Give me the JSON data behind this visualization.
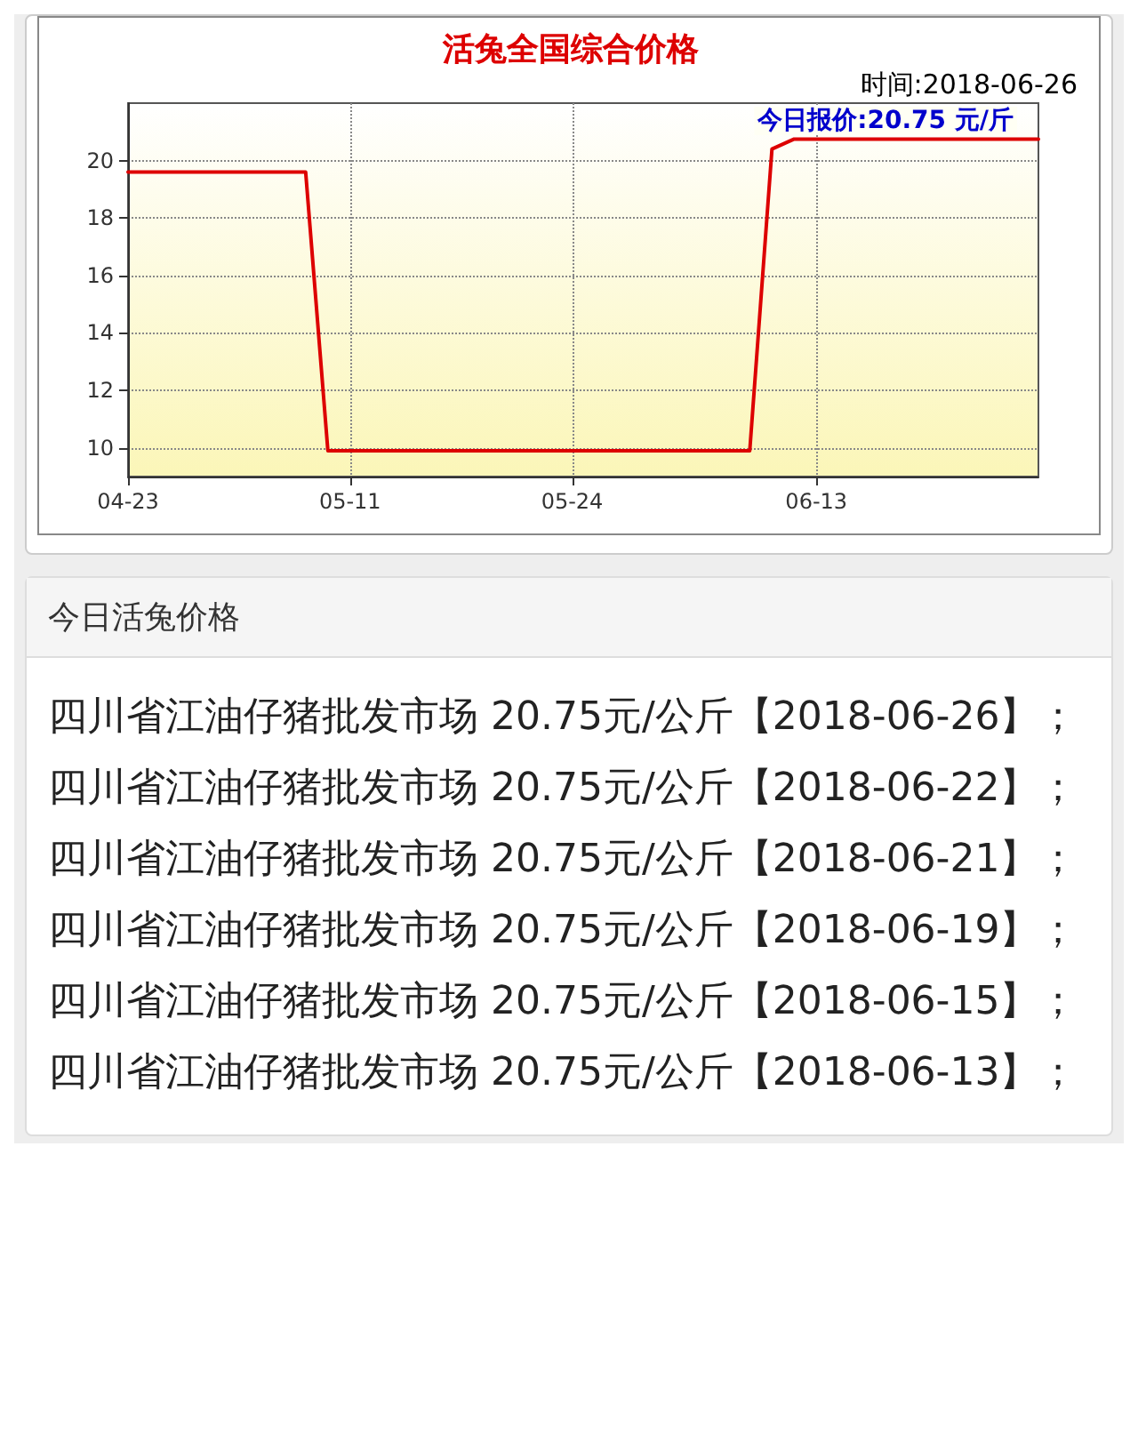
{
  "chart_data": {
    "type": "line",
    "title": "活兔全国综合价格",
    "categories": [
      "04-23",
      null,
      null,
      null,
      null,
      null,
      null,
      null,
      null,
      null,
      "05-11",
      null,
      null,
      null,
      null,
      null,
      null,
      null,
      null,
      null,
      "05-24",
      null,
      null,
      null,
      null,
      null,
      null,
      null,
      null,
      null,
      null,
      "06-13",
      null,
      null,
      null,
      null,
      null,
      null,
      null,
      null,
      null,
      null
    ],
    "series": [
      {
        "color": "#dd0000",
        "values": [
          19.6,
          19.6,
          19.6,
          19.6,
          19.6,
          19.6,
          19.6,
          19.6,
          19.6,
          9.9,
          9.9,
          9.9,
          9.9,
          9.9,
          9.9,
          9.9,
          9.9,
          9.9,
          9.9,
          9.9,
          9.9,
          9.9,
          9.9,
          9.9,
          9.9,
          9.9,
          9.9,
          9.9,
          9.9,
          20.4,
          20.75,
          20.75,
          20.75,
          20.75,
          20.75,
          20.75,
          20.75,
          20.75,
          20.75,
          20.75,
          20.75,
          20.75
        ]
      }
    ],
    "ylim": [
      9,
      22
    ],
    "yticks": [
      10,
      12,
      14,
      16,
      18,
      20
    ],
    "grid": true,
    "marker": "none",
    "line_style": "solid",
    "annotations": [
      "时间:2018-06-26",
      "今日报价:20.75 元/斤",
      "今日活兔价格",
      "四川省江油仔猪批发市场 20.75元/公斤【2018-06-26】；",
      "四川省江油仔猪批发市场 20.75元/公斤【2018-06-22】；",
      "四川省江油仔猪批发市场 20.75元/公斤【2018-06-21】；",
      "四川省江油仔猪批发市场 20.75元/公斤【2018-06-19】；",
      "四川省江油仔猪批发市场 20.75元/公斤【2018-06-15】；",
      "四川省江油仔猪批发市场 20.75元/公斤【2018-06-13】；"
    ]
  }
}
